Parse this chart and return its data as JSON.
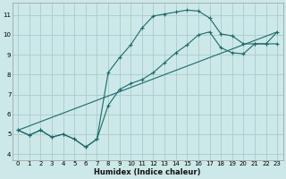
{
  "xlabel": "Humidex (Indice chaleur)",
  "bg_color": "#cce8e8",
  "grid_color": "#aacccc",
  "line_color": "#1a6b6b",
  "xlim": [
    -0.5,
    23.5
  ],
  "ylim": [
    3.7,
    11.6
  ],
  "xticks": [
    0,
    1,
    2,
    3,
    4,
    5,
    6,
    7,
    8,
    9,
    10,
    11,
    12,
    13,
    14,
    15,
    16,
    17,
    18,
    19,
    20,
    21,
    22,
    23
  ],
  "yticks": [
    4,
    5,
    6,
    7,
    8,
    9,
    10,
    11
  ],
  "line1_x": [
    0,
    1,
    2,
    3,
    4,
    5,
    6,
    7,
    8,
    9,
    10,
    11,
    12,
    13,
    14,
    15,
    16,
    17,
    18,
    19,
    20,
    21,
    22,
    23
  ],
  "line1_y": [
    5.2,
    4.95,
    5.2,
    4.85,
    5.0,
    4.75,
    4.35,
    4.75,
    8.1,
    8.85,
    9.5,
    10.35,
    10.95,
    11.05,
    11.15,
    11.25,
    11.2,
    10.85,
    10.05,
    9.95,
    9.55,
    9.55,
    9.55,
    10.15
  ],
  "line2_x": [
    0,
    1,
    2,
    3,
    4,
    5,
    6,
    7,
    8,
    9,
    10,
    11,
    12,
    13,
    14,
    15,
    16,
    17,
    18,
    19,
    20,
    21,
    22,
    23
  ],
  "line2_y": [
    5.2,
    4.95,
    5.2,
    4.85,
    5.0,
    4.75,
    4.35,
    4.75,
    6.45,
    7.25,
    7.55,
    7.75,
    8.1,
    8.6,
    9.1,
    9.5,
    10.0,
    10.15,
    9.35,
    9.1,
    9.05,
    9.55,
    9.55,
    9.55
  ],
  "line3_x": [
    0,
    23
  ],
  "line3_y": [
    5.2,
    10.15
  ]
}
